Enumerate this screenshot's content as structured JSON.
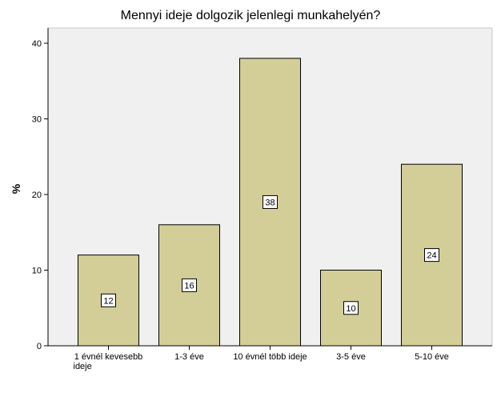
{
  "chart_data": {
    "type": "bar",
    "title": "Mennyi ideje dolgozik jelenlegi munkahelyén?",
    "xlabel": "",
    "ylabel": "%",
    "categories": [
      [
        "1 évnél kevesebb",
        "ideje"
      ],
      [
        "1-3 éve"
      ],
      [
        "10 évnél több ideje"
      ],
      [
        "3-5 éve"
      ],
      [
        "5-10 éve"
      ]
    ],
    "values": [
      12,
      16,
      38,
      10,
      24
    ],
    "data_labels": [
      "12",
      "16",
      "38",
      "10",
      "24"
    ],
    "yticks": [
      0,
      10,
      20,
      30,
      40
    ],
    "ylim": [
      0,
      42
    ],
    "grid": false,
    "legend": "none",
    "colors": {
      "plot_background": "#f0f0f0",
      "bar_fill": "#d3ce97",
      "bar_stroke": "#000000",
      "label_box_fill": "#ffffff"
    }
  }
}
